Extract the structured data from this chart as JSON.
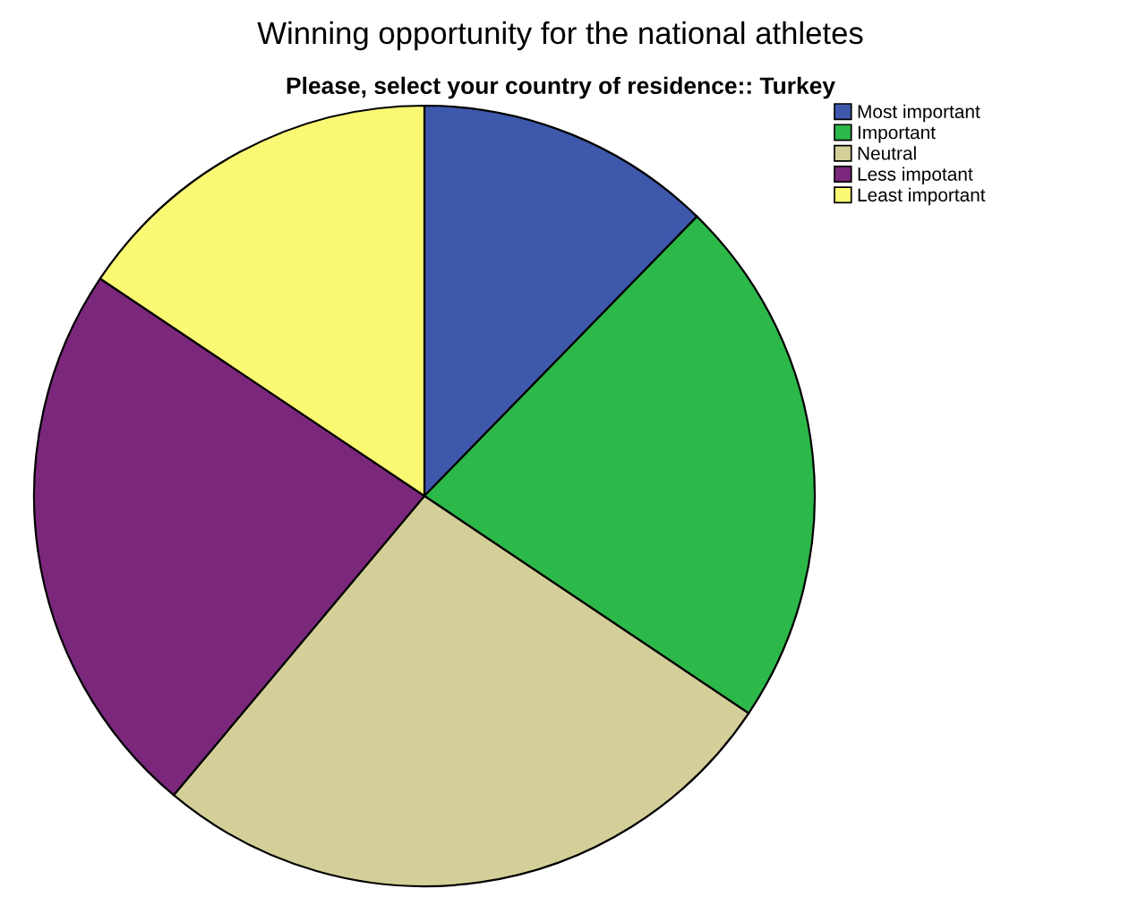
{
  "chart_data": {
    "type": "pie",
    "title": "Winning opportunity for the national athletes",
    "subtitle": "Please, select your country of residence:: Turkey",
    "categories": [
      "Most important",
      "Important",
      "Neutral",
      "Less impotant",
      "Least important"
    ],
    "values": [
      12.3,
      22.1,
      26.7,
      23.3,
      15.6
    ],
    "colors": [
      "#3e58ac",
      "#2db84a",
      "#d4cf98",
      "#7b287c",
      "#fbf873"
    ],
    "legend": "top right"
  }
}
